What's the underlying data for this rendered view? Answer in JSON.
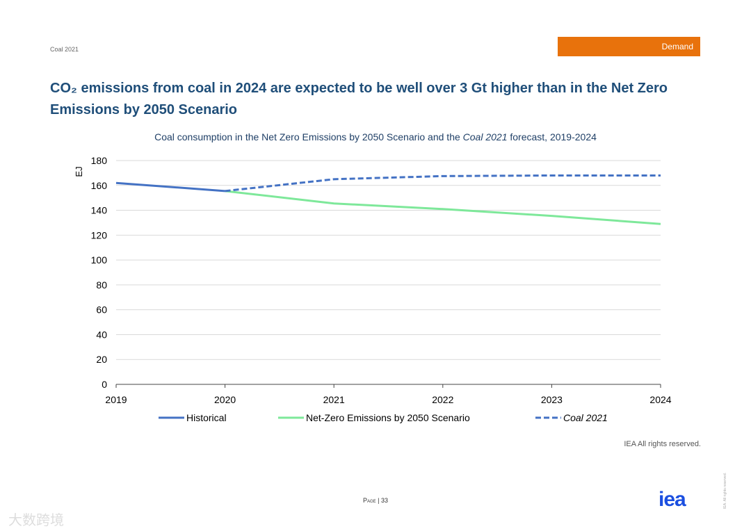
{
  "header": {
    "doc": "Coal 2021",
    "section_tag": "Demand",
    "title": "CO₂ emissions from coal in 2024 are expected to be well over 3 Gt higher than in the Net Zero Emissions by 2050 Scenario"
  },
  "chart_data": {
    "type": "line",
    "title_parts": [
      "Coal consumption in the Net Zero Emissions by 2050 Scenario and the ",
      "Coal 2021",
      " forecast, 2019-2024"
    ],
    "ylabel": "EJ",
    "xlabel": "",
    "ylim": [
      0,
      180
    ],
    "yticks": [
      "0",
      "20",
      "40",
      "60",
      "80",
      "100",
      "120",
      "140",
      "160",
      "180"
    ],
    "x": [
      "2019",
      "2020",
      "2021",
      "2022",
      "2023",
      "2024"
    ],
    "grid": true,
    "legend_placement": "bottom",
    "series": [
      {
        "name": "Historical",
        "color": "#4472c4",
        "dash": false,
        "values": [
          162,
          155.5,
          null,
          null,
          null,
          null
        ]
      },
      {
        "name": "Net-Zero Emissions by 2050 Scenario",
        "color": "#7ee89a",
        "dash": false,
        "values": [
          null,
          155.5,
          145.5,
          141,
          135.5,
          129
        ]
      },
      {
        "name": "Coal 2021",
        "color": "#4472c4",
        "dash": true,
        "italic": true,
        "values": [
          null,
          155.5,
          165,
          167.5,
          168,
          168
        ]
      }
    ]
  },
  "footer": {
    "credit": "IEA All rights reserved.",
    "page": "Page | 33",
    "logo": "iea",
    "rights": "IEA. All rights reserved.",
    "watermark": "大数跨境"
  }
}
